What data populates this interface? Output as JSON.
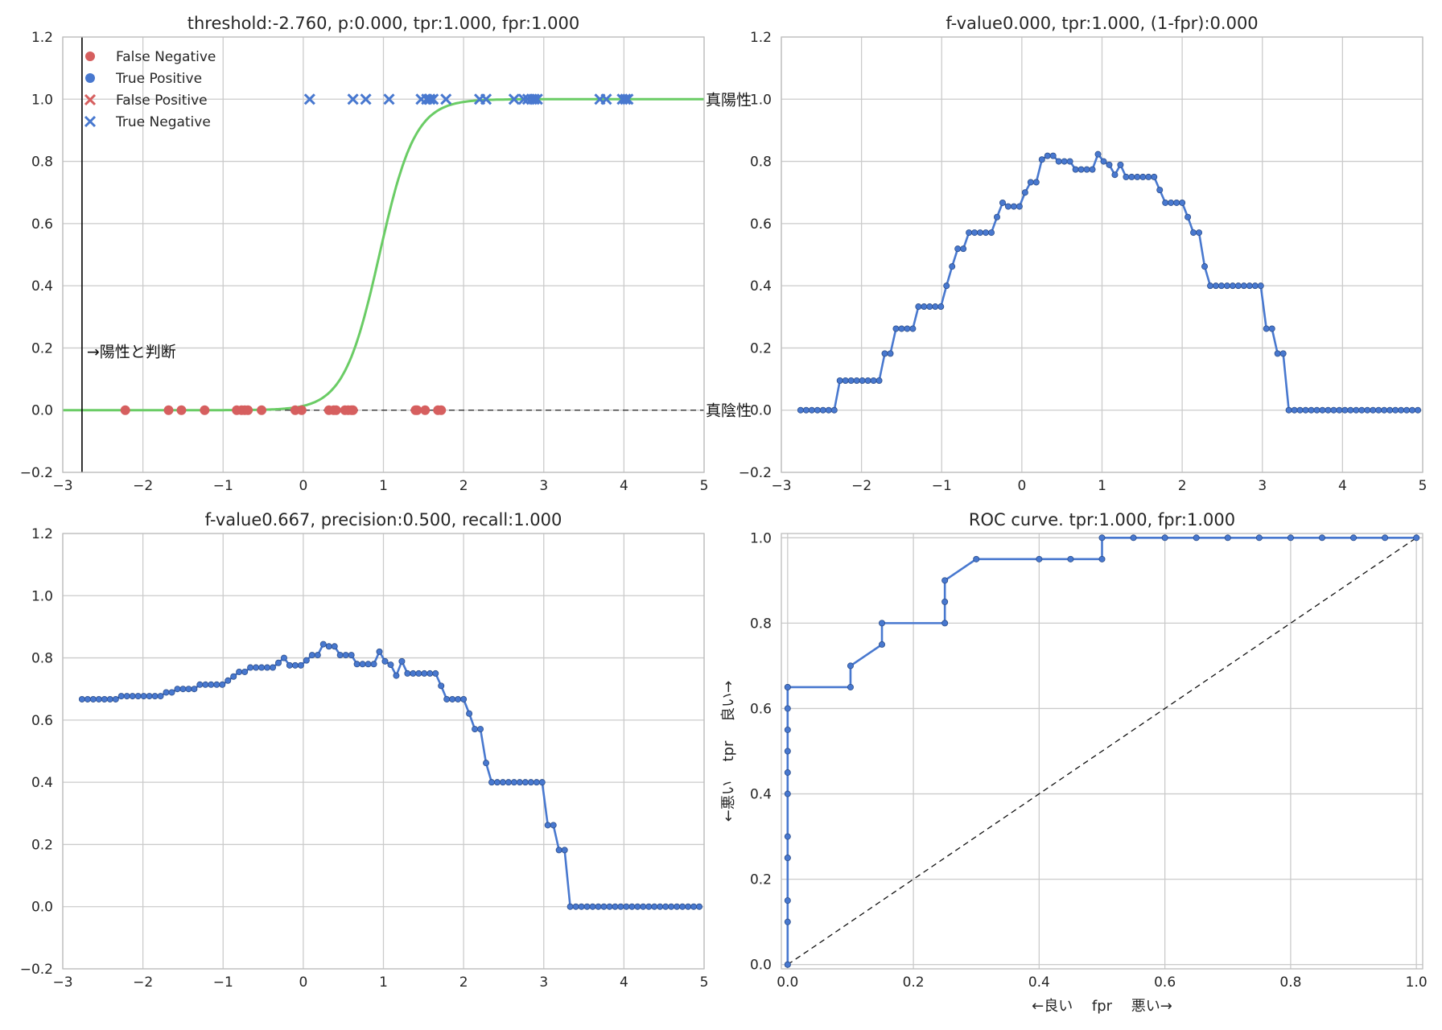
{
  "colors": {
    "blue": "#4878cf",
    "red": "#d65f5f",
    "green": "#6acc65",
    "grid": "#cbcbcb",
    "text": "#262626"
  },
  "chart_data": [
    {
      "id": "sigmoid",
      "type": "scatter",
      "title": "threshold:-2.760, p:0.000, tpr:1.000, fpr:1.000",
      "xlim": [
        -3,
        5
      ],
      "ylim": [
        -0.2,
        1.2
      ],
      "xticks": [
        -3,
        -2,
        -1,
        0,
        1,
        2,
        3,
        4,
        5
      ],
      "yticks": [
        -0.2,
        0.0,
        0.2,
        0.4,
        0.6,
        0.8,
        1.0,
        1.2
      ],
      "xtick_labels": [
        "−3",
        "−2",
        "−1",
        "0",
        "1",
        "2",
        "3",
        "4",
        "5"
      ],
      "ytick_labels": [
        "−0.2",
        "0.0",
        "0.2",
        "0.4",
        "0.6",
        "0.8",
        "1.0",
        "1.2"
      ],
      "grid": true,
      "legend_position": "top-left",
      "legend": [
        "False Negative",
        "True Positive",
        "False Positive",
        "True Negative"
      ],
      "threshold": -2.76,
      "sigmoid": {
        "center": 0.95,
        "slope": 4.5
      },
      "series": [
        {
          "name": "True Positive",
          "marker": "o",
          "y": 0,
          "x": [
            -2.22,
            -1.68,
            -1.52,
            -1.23,
            -0.83,
            -0.77,
            -0.73,
            -0.69,
            -0.52,
            -0.1,
            -0.02,
            0.32,
            0.38,
            0.41,
            0.52,
            0.56,
            0.6,
            0.62,
            1.4,
            1.42,
            1.52,
            1.68,
            1.72
          ]
        },
        {
          "name": "True Negative",
          "marker": "x",
          "y": 1,
          "x": [
            0.08,
            0.62,
            0.78,
            1.07,
            1.47,
            1.54,
            1.58,
            1.62,
            1.78,
            2.2,
            2.28,
            2.63,
            2.75,
            2.8,
            2.85,
            2.88,
            2.92,
            3.7,
            3.78,
            3.98,
            4.02,
            4.05
          ]
        }
      ],
      "annotations": [
        {
          "text": "→陽性と判断",
          "x": -2.7,
          "y": 0.19
        },
        {
          "text": "真陽性",
          "x": 5.0,
          "y": 1.0
        },
        {
          "text": "真陰性",
          "x": 5.0,
          "y": 0.0
        }
      ],
      "dashed_line_y": 0
    },
    {
      "id": "fvalue-tpr",
      "type": "line",
      "title": "f-value0.000,  tpr:1.000, (1-fpr):0.000",
      "xlim": [
        -3,
        5
      ],
      "ylim": [
        -0.2,
        1.2
      ],
      "xticks": [
        -3,
        -2,
        -1,
        0,
        1,
        2,
        3,
        4,
        5
      ],
      "yticks": [
        -0.2,
        0.0,
        0.2,
        0.4,
        0.6,
        0.8,
        1.0,
        1.2
      ],
      "xtick_labels": [
        "−3",
        "−2",
        "−1",
        "0",
        "1",
        "2",
        "3",
        "4",
        "5"
      ],
      "ytick_labels": [
        "−0.2",
        "0.0",
        "0.2",
        "0.4",
        "0.6",
        "0.8",
        "1.0",
        "1.2"
      ],
      "grid": true,
      "series": [
        {
          "x": [
            -2.76,
            -2.69,
            -2.62,
            -2.55,
            -2.48,
            -2.41,
            -2.34,
            -2.27,
            -2.2,
            -2.13,
            -2.06,
            -1.99,
            -1.92,
            -1.85,
            -1.78,
            -1.71,
            -1.64,
            -1.57,
            -1.5,
            -1.43,
            -1.36,
            -1.29,
            -1.22,
            -1.15,
            -1.08,
            -1.01,
            -0.94,
            -0.87,
            -0.8,
            -0.73,
            -0.66,
            -0.59,
            -0.52,
            -0.45,
            -0.38,
            -0.31,
            -0.24,
            -0.17,
            -0.1,
            -0.03,
            0.04,
            0.11,
            0.18,
            0.25,
            0.32,
            0.39,
            0.46,
            0.53,
            0.6,
            0.67,
            0.74,
            0.81,
            0.88,
            0.95,
            1.02,
            1.09,
            1.16,
            1.23,
            1.3,
            1.37,
            1.44,
            1.51,
            1.58,
            1.65,
            1.72,
            1.79,
            1.86,
            1.93,
            2.0,
            2.07,
            2.14,
            2.21,
            2.28,
            2.35,
            2.42,
            2.49,
            2.56,
            2.63,
            2.7,
            2.77,
            2.84,
            2.91,
            2.98,
            3.05,
            3.12,
            3.19,
            3.26,
            3.33,
            3.4,
            3.47,
            3.54,
            3.61,
            3.68,
            3.75,
            3.82,
            3.89,
            3.96,
            4.03,
            4.1,
            4.17,
            4.24,
            4.31,
            4.38,
            4.45,
            4.52,
            4.59,
            4.66,
            4.73,
            4.8,
            4.87,
            4.94,
            5.01
          ],
          "y": [
            0.0,
            0.0,
            0.0,
            0.0,
            0.0,
            0.0,
            0.0,
            0.095,
            0.095,
            0.095,
            0.095,
            0.095,
            0.095,
            0.095,
            0.095,
            0.182,
            0.182,
            0.262,
            0.262,
            0.262,
            0.262,
            0.333,
            0.333,
            0.333,
            0.333,
            0.333,
            0.4,
            0.462,
            0.519,
            0.519,
            0.571,
            0.571,
            0.571,
            0.571,
            0.571,
            0.621,
            0.667,
            0.655,
            0.655,
            0.655,
            0.7,
            0.733,
            0.733,
            0.806,
            0.818,
            0.818,
            0.8,
            0.8,
            0.8,
            0.774,
            0.774,
            0.774,
            0.774,
            0.823,
            0.8,
            0.789,
            0.757,
            0.789,
            0.75,
            0.75,
            0.75,
            0.75,
            0.75,
            0.75,
            0.708,
            0.667,
            0.667,
            0.667,
            0.667,
            0.621,
            0.571,
            0.571,
            0.462,
            0.4,
            0.4,
            0.4,
            0.4,
            0.4,
            0.4,
            0.4,
            0.4,
            0.4,
            0.4,
            0.262,
            0.262,
            0.182,
            0.182,
            0.0,
            0.0,
            0.0,
            0.0,
            0.0,
            0.0,
            0.0,
            0.0,
            0.0,
            0.0,
            0.0,
            0.0,
            0.0,
            0.0,
            0.0,
            0.0,
            0.0,
            0.0,
            0.0,
            0.0,
            0.0,
            0.0,
            0.0,
            0.0,
            0.0
          ]
        }
      ]
    },
    {
      "id": "fvalue-precision",
      "type": "line",
      "title": "f-value0.667,  precision:0.500, recall:1.000",
      "xlim": [
        -3,
        5
      ],
      "ylim": [
        -0.2,
        1.2
      ],
      "xticks": [
        -3,
        -2,
        -1,
        0,
        1,
        2,
        3,
        4,
        5
      ],
      "yticks": [
        -0.2,
        0.0,
        0.2,
        0.4,
        0.6,
        0.8,
        1.0,
        1.2
      ],
      "xtick_labels": [
        "−3",
        "−2",
        "−1",
        "0",
        "1",
        "2",
        "3",
        "4",
        "5"
      ],
      "ytick_labels": [
        "−0.2",
        "0.0",
        "0.2",
        "0.4",
        "0.6",
        "0.8",
        "1.0",
        "1.2"
      ],
      "grid": true,
      "series": [
        {
          "x": [
            -2.76,
            -2.69,
            -2.62,
            -2.55,
            -2.48,
            -2.41,
            -2.34,
            -2.27,
            -2.2,
            -2.13,
            -2.06,
            -1.99,
            -1.92,
            -1.85,
            -1.78,
            -1.71,
            -1.64,
            -1.57,
            -1.5,
            -1.43,
            -1.36,
            -1.29,
            -1.22,
            -1.15,
            -1.08,
            -1.01,
            -0.94,
            -0.87,
            -0.8,
            -0.73,
            -0.66,
            -0.59,
            -0.52,
            -0.45,
            -0.38,
            -0.31,
            -0.24,
            -0.17,
            -0.1,
            -0.03,
            0.04,
            0.11,
            0.18,
            0.25,
            0.32,
            0.39,
            0.46,
            0.53,
            0.6,
            0.67,
            0.74,
            0.81,
            0.88,
            0.95,
            1.02,
            1.09,
            1.16,
            1.23,
            1.3,
            1.37,
            1.44,
            1.51,
            1.58,
            1.65,
            1.72,
            1.79,
            1.86,
            1.93,
            2.0,
            2.07,
            2.14,
            2.21,
            2.28,
            2.35,
            2.42,
            2.49,
            2.56,
            2.63,
            2.7,
            2.77,
            2.84,
            2.91,
            2.98,
            3.05,
            3.12,
            3.19,
            3.26,
            3.33,
            3.4,
            3.47,
            3.54,
            3.61,
            3.68,
            3.75,
            3.82,
            3.89,
            3.96,
            4.03,
            4.1,
            4.17,
            4.24,
            4.31,
            4.38,
            4.45,
            4.52,
            4.59,
            4.66,
            4.73,
            4.8,
            4.87,
            4.94,
            5.01
          ],
          "y": [
            0.667,
            0.667,
            0.667,
            0.667,
            0.667,
            0.667,
            0.667,
            0.677,
            0.677,
            0.677,
            0.677,
            0.677,
            0.677,
            0.677,
            0.677,
            0.689,
            0.689,
            0.7,
            0.7,
            0.7,
            0.7,
            0.714,
            0.714,
            0.714,
            0.714,
            0.714,
            0.727,
            0.74,
            0.755,
            0.755,
            0.769,
            0.769,
            0.769,
            0.769,
            0.769,
            0.784,
            0.8,
            0.776,
            0.776,
            0.776,
            0.792,
            0.809,
            0.809,
            0.844,
            0.837,
            0.837,
            0.809,
            0.809,
            0.809,
            0.78,
            0.78,
            0.78,
            0.78,
            0.82,
            0.789,
            0.778,
            0.743,
            0.789,
            0.75,
            0.75,
            0.75,
            0.75,
            0.75,
            0.75,
            0.71,
            0.667,
            0.667,
            0.667,
            0.667,
            0.621,
            0.571,
            0.571,
            0.462,
            0.4,
            0.4,
            0.4,
            0.4,
            0.4,
            0.4,
            0.4,
            0.4,
            0.4,
            0.4,
            0.262,
            0.262,
            0.182,
            0.182,
            0.0,
            0.0,
            0.0,
            0.0,
            0.0,
            0.0,
            0.0,
            0.0,
            0.0,
            0.0,
            0.0,
            0.0,
            0.0,
            0.0,
            0.0,
            0.0,
            0.0,
            0.0,
            0.0,
            0.0,
            0.0,
            0.0,
            0.0,
            0.0,
            0.0
          ]
        }
      ]
    },
    {
      "id": "roc",
      "type": "line",
      "title": "ROC curve. tpr:1.000, fpr:1.000",
      "xlabel": "←良い　 fpr　  悪い→",
      "ylabel": "←悪い　 tpr　  良い→",
      "xlim": [
        -0.01,
        1.01
      ],
      "ylim": [
        -0.01,
        1.01
      ],
      "xticks": [
        0.0,
        0.2,
        0.4,
        0.6,
        0.8,
        1.0
      ],
      "yticks": [
        0.0,
        0.2,
        0.4,
        0.6,
        0.8,
        1.0
      ],
      "xtick_labels": [
        "0.0",
        "0.2",
        "0.4",
        "0.6",
        "0.8",
        "1.0"
      ],
      "ytick_labels": [
        "0.0",
        "0.2",
        "0.4",
        "0.6",
        "0.8",
        "1.0"
      ],
      "grid": true,
      "diagonal": true,
      "series": [
        {
          "x": [
            0.0,
            0.0,
            0.0,
            0.0,
            0.0,
            0.0,
            0.0,
            0.0,
            0.0,
            0.0,
            0.0,
            0.0,
            0.0,
            0.0,
            0.1,
            0.1,
            0.15,
            0.15,
            0.25,
            0.25,
            0.25,
            0.3,
            0.4,
            0.45,
            0.5,
            0.5,
            0.55,
            0.6,
            0.65,
            0.7,
            0.75,
            0.8,
            0.85,
            0.9,
            0.95,
            1.0
          ],
          "y": [
            0.0,
            0.0,
            0.1,
            0.15,
            0.25,
            0.25,
            0.3,
            0.4,
            0.45,
            0.5,
            0.55,
            0.6,
            0.65,
            0.65,
            0.65,
            0.7,
            0.75,
            0.8,
            0.8,
            0.85,
            0.9,
            0.95,
            0.95,
            0.95,
            0.95,
            1.0,
            1.0,
            1.0,
            1.0,
            1.0,
            1.0,
            1.0,
            1.0,
            1.0,
            1.0,
            1.0
          ]
        }
      ]
    }
  ]
}
